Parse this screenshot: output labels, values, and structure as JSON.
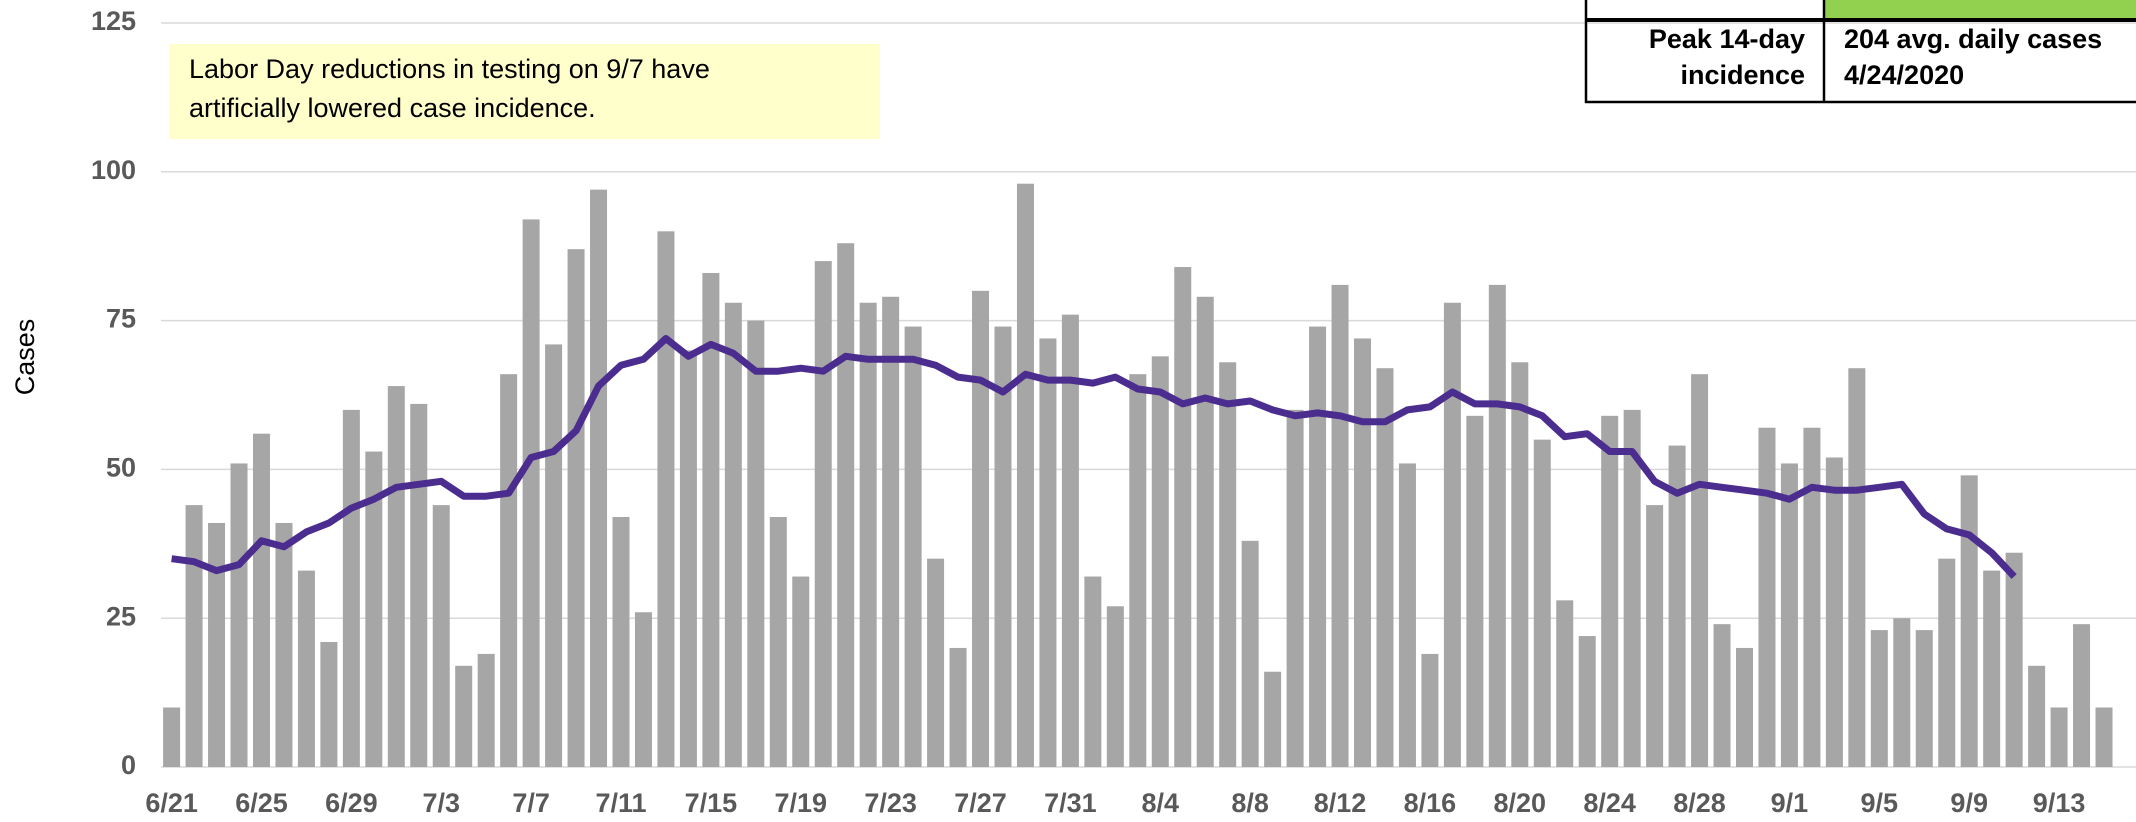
{
  "chart_data": {
    "type": "bar",
    "y_label": "Cases",
    "annotation": [
      "Labor Day reductions in testing on 9/7 have",
      "artificially lowered case incidence."
    ],
    "table": {
      "rows": [
        [
          [
            "Peak 14-day",
            "incidence"
          ],
          [
            "204 avg. daily cases",
            "4/24/2020"
          ]
        ]
      ]
    },
    "categories": [
      "6/21",
      null,
      null,
      null,
      "6/25",
      null,
      null,
      null,
      "6/29",
      null,
      null,
      null,
      "7/3",
      null,
      null,
      null,
      "7/7",
      null,
      null,
      null,
      "7/11",
      null,
      null,
      null,
      "7/15",
      null,
      null,
      null,
      "7/19",
      null,
      null,
      null,
      "7/23",
      null,
      null,
      null,
      "7/27",
      null,
      null,
      null,
      "7/31",
      null,
      null,
      null,
      "8/4",
      null,
      null,
      null,
      "8/8",
      null,
      null,
      null,
      "8/12",
      null,
      null,
      null,
      "8/16",
      null,
      null,
      null,
      "8/20",
      null,
      null,
      null,
      "8/24",
      null,
      null,
      null,
      "8/28",
      null,
      null,
      null,
      "9/1",
      null,
      null,
      null,
      "9/5",
      null,
      null,
      null,
      "9/9",
      null,
      null,
      null,
      "9/13",
      null,
      null
    ],
    "series": [
      {
        "type": "bar",
        "color": "#a6a6a6",
        "values": [
          10,
          44,
          41,
          51,
          56,
          41,
          33,
          21,
          60,
          53,
          64,
          61,
          44,
          17,
          19,
          66,
          92,
          71,
          87,
          97,
          42,
          26,
          90,
          70,
          83,
          78,
          75,
          42,
          32,
          85,
          88,
          78,
          79,
          74,
          35,
          20,
          80,
          74,
          98,
          72,
          76,
          32,
          27,
          66,
          69,
          84,
          79,
          68,
          38,
          16,
          60,
          74,
          81,
          72,
          67,
          51,
          19,
          78,
          59,
          81,
          68,
          55,
          28,
          22,
          59,
          60,
          44,
          54,
          66,
          24,
          20,
          57,
          51,
          57,
          52,
          67,
          23,
          25,
          23,
          35,
          49,
          33,
          36,
          17,
          10,
          24,
          10
        ]
      },
      {
        "type": "line",
        "color": "#4b2c8f",
        "values": [
          35,
          34.5,
          33,
          34,
          38,
          37,
          39.5,
          41,
          43.5,
          45,
          47,
          47.5,
          48,
          45.5,
          45.5,
          46,
          52,
          53,
          56.5,
          64,
          67.5,
          68.5,
          72,
          69,
          71,
          69.5,
          66.5,
          66.5,
          67,
          66.5,
          69,
          68.5,
          68.5,
          68.5,
          67.5,
          65.5,
          65,
          63,
          66,
          65,
          65,
          64.5,
          65.5,
          63.5,
          63,
          61,
          62,
          61,
          61.5,
          60,
          59,
          59.5,
          59,
          58,
          58,
          60,
          60.5,
          63,
          61,
          61,
          60.5,
          59,
          55.5,
          56,
          53,
          53,
          48,
          46,
          47.5,
          47,
          46.5,
          46,
          45,
          47,
          46.5,
          46.5,
          47,
          47.5,
          42.5,
          40,
          39,
          36,
          32,
          null,
          null,
          null,
          null
        ]
      }
    ],
    "ylim": [
      0,
      125
    ],
    "yticks": [
      0,
      25,
      50,
      75,
      100,
      125
    ],
    "grid": true
  }
}
